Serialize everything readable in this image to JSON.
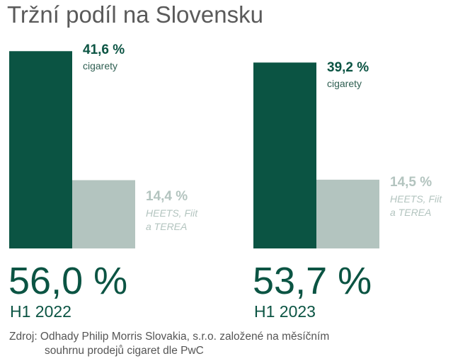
{
  "chart_data": {
    "type": "bar",
    "title": "Tržní podíl na Slovensku",
    "categories": [
      "H1 2022",
      "H1 2023"
    ],
    "totals": [
      "56,0 %",
      "53,7 %"
    ],
    "series": [
      {
        "name": "cigarety",
        "values": [
          41.6,
          39.2
        ],
        "labels": [
          "41,6 %",
          "39,2 %"
        ],
        "color": "#0b5443"
      },
      {
        "name": "HEETS, Fiit a TEREA",
        "name_lines": [
          "HEETS, Fiit",
          "a TEREA"
        ],
        "values": [
          14.4,
          14.5
        ],
        "labels": [
          "14,4 %",
          "14,5 %"
        ],
        "color": "#b3c4bf"
      }
    ],
    "source_lines": [
      "Zdroj: Odhady Philip Morris Slovakia, s.r.o. založené na měsíčním",
      "souhrnu prodejů cigaret dle PwC"
    ]
  }
}
